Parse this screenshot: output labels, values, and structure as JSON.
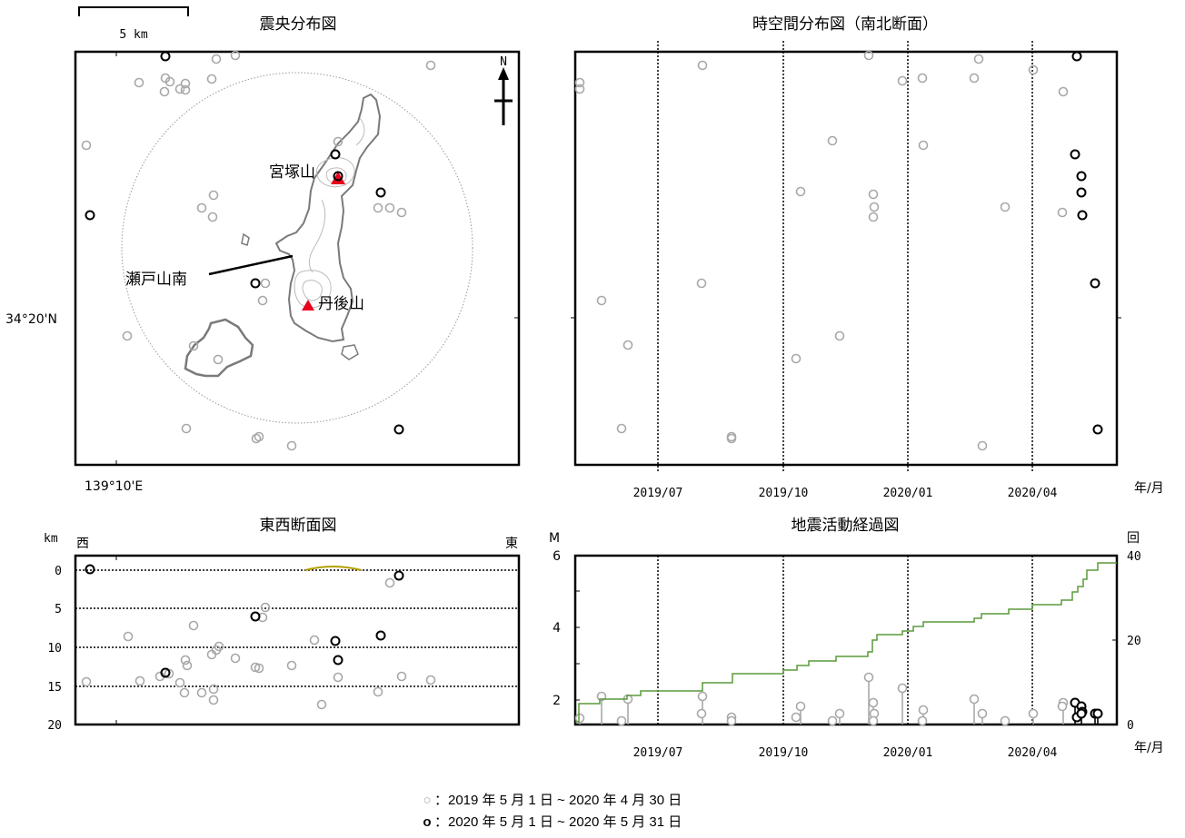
{
  "titles": {
    "map": "震央分布図",
    "spacetime": "時空間分布図（南北断面）",
    "ew_section": "東西断面図",
    "activity": "地震活動経過図"
  },
  "map": {
    "scale_label": "5 km",
    "lat_label": "34°20'N",
    "lon_label": "139°10'E",
    "north_label": "N",
    "volcanoes": [
      {
        "name": "宮塚山"
      },
      {
        "name": "丹後山"
      }
    ],
    "annotation": "瀬戸山南",
    "volcano_color": "#e8001c"
  },
  "axes": {
    "time_ticks": [
      "2019/07",
      "2019/10",
      "2020/01",
      "2020/04"
    ],
    "time_unit": "年/月",
    "depth_unit": "km",
    "depth_ticks": [
      "0",
      "5",
      "10",
      "15",
      "20"
    ],
    "west": "西",
    "east": "東",
    "mag_label": "M",
    "mag_ticks": [
      "2",
      "4",
      "6"
    ],
    "count_label": "回",
    "count_ticks": [
      "0",
      "20",
      "40"
    ]
  },
  "legend": {
    "period1": "：2019 年 5 月 1 日 ~ 2020 年 4 月 30 日",
    "period2": "：2020 年 5 月 1 日 ~ 2020 年 5 月 31 日",
    "sym1": "○",
    "sym2": "o"
  },
  "colors": {
    "old_events": "#a8a8a8",
    "new_events": "#000000",
    "cumulative": "#5a9a3a",
    "island": "#8a8a8a"
  },
  "chart_data": [
    {
      "type": "scatter",
      "title": "震央分布図",
      "xlabel": "139°10'E",
      "ylabel": "34°20'N"
    },
    {
      "type": "scatter",
      "title": "時空間分布図（南北断面）",
      "xlabel": "年/月",
      "x_ticks": [
        "2019/07",
        "2019/10",
        "2020/01",
        "2020/04"
      ]
    },
    {
      "type": "scatter",
      "title": "東西断面図",
      "ylabel": "km",
      "ylim": [
        0,
        20
      ],
      "y_ticks": [
        0,
        5,
        10,
        15,
        20
      ]
    },
    {
      "type": "line",
      "title": "地震活動経過図",
      "xlabel": "年/月",
      "x_ticks": [
        "2019/07",
        "2019/10",
        "2020/01",
        "2020/04"
      ],
      "left_axis": {
        "label": "M",
        "ticks": [
          2,
          4,
          6
        ]
      },
      "right_axis": {
        "label": "回",
        "ticks": [
          0,
          20,
          40
        ],
        "ylim": [
          0,
          40
        ]
      },
      "series": [
        {
          "x": [
            "2019-05-01",
            "2019-05-04",
            "2019-05-20",
            "2019-05-28",
            "2019-06-05",
            "2019-06-18",
            "2019-08-10",
            "2019-09-01",
            "2019-09-25",
            "2019-10-10",
            "2019-10-20",
            "2019-11-10",
            "2019-11-25",
            "2019-12-10",
            "2019-12-15",
            "2019-12-25",
            "2020-01-05",
            "2020-01-15",
            "2020-01-25",
            "2020-02-10",
            "2020-02-20",
            "2020-03-05",
            "2020-03-20",
            "2020-04-05",
            "2020-04-20",
            "2020-05-05",
            "2020-05-12",
            "2020-05-18",
            "2020-05-22",
            "2020-05-31"
          ],
          "y": [
            1,
            4,
            5,
            6,
            7,
            8,
            10,
            12,
            13,
            14,
            15,
            16,
            17,
            18,
            19,
            22,
            23,
            24,
            25,
            25,
            26,
            27,
            28,
            29,
            30,
            31,
            33,
            35,
            38,
            38
          ]
        }
      ]
    }
  ]
}
